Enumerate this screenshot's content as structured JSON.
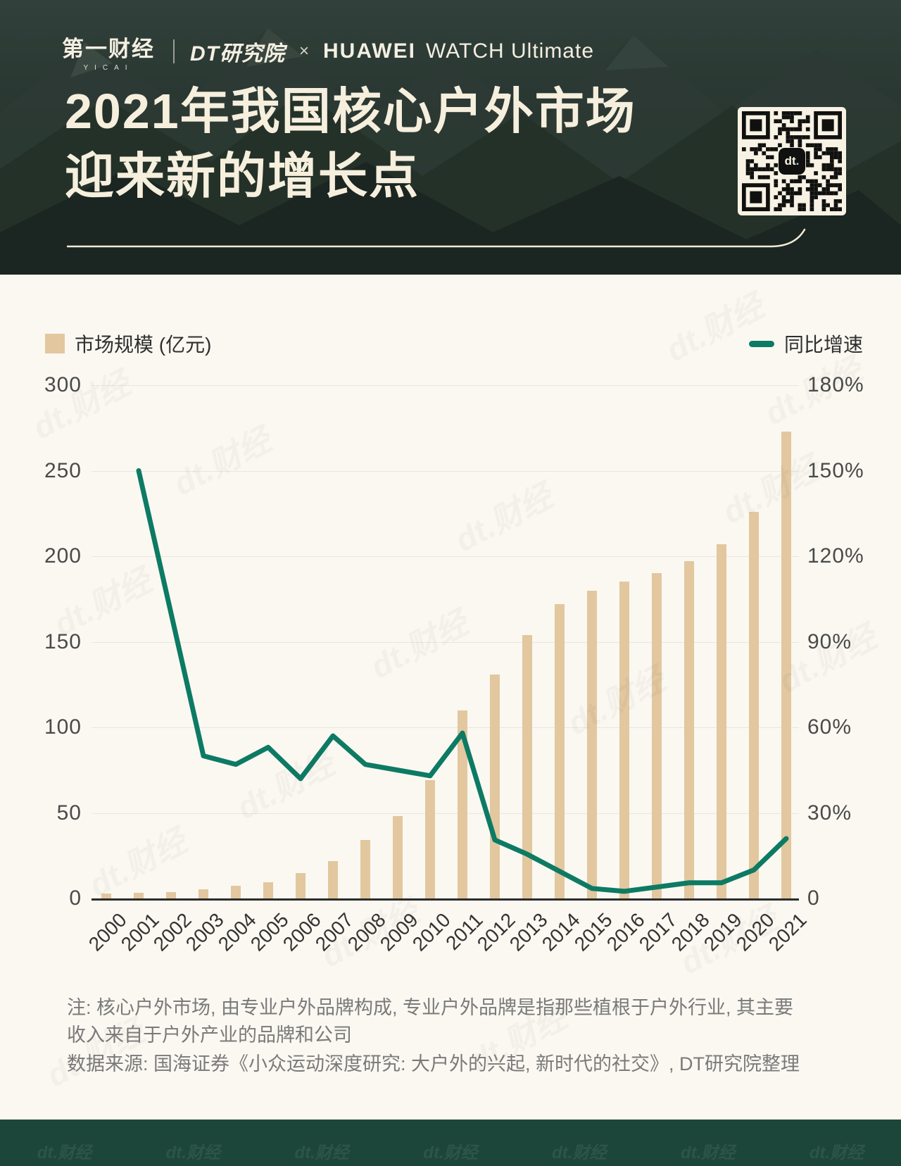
{
  "header": {
    "yicai_logo": "第一财经",
    "yicai_sub": "YICAI",
    "dt_logo": "DT研究院",
    "cross": "×",
    "huawei_bold": "HUAWEI",
    "huawei_rest": "WATCH Ultimate",
    "title_line1": "2021年我国核心户外市场",
    "title_line2": "迎来新的增长点",
    "qr_logo_text": "dt"
  },
  "legend": {
    "bars_label": "市场规模 (亿元)",
    "line_label": "同比增速"
  },
  "colors": {
    "bar": "#e2c79f",
    "line": "#0d7a64",
    "background": "#faf8f1",
    "header_bg": "#232f2b",
    "title_text": "#f6efdd",
    "footer": "#1c4639"
  },
  "chart_data": {
    "type": "bar+line combo",
    "title": "2021年我国核心户外市场迎来新的增长点",
    "categories": [
      "2000",
      "2001",
      "2002",
      "2003",
      "2004",
      "2005",
      "2006",
      "2007",
      "2008",
      "2009",
      "2010",
      "2011",
      "2012",
      "2013",
      "2014",
      "2015",
      "2016",
      "2017",
      "2018",
      "2019",
      "2020",
      "2021"
    ],
    "series": [
      {
        "name": "市场规模 (亿元)",
        "type": "bar",
        "axis": "left",
        "values": [
          3,
          3.4,
          3.9,
          5.3,
          7.4,
          9.6,
          15,
          22,
          34,
          48,
          69,
          110,
          131,
          154,
          172,
          180,
          185,
          190,
          197,
          207,
          226,
          273
        ]
      },
      {
        "name": "同比增速",
        "type": "line",
        "axis": "right",
        "unit": "%",
        "values": [
          null,
          150,
          100,
          50,
          47,
          53,
          42,
          57,
          47,
          45,
          43,
          58,
          20.5,
          15.5,
          9.5,
          3.5,
          2.5,
          4,
          5.5,
          5.5,
          10,
          21
        ]
      }
    ],
    "left_axis": {
      "ticks": [
        "300",
        "250",
        "200",
        "150",
        "100",
        "50",
        "0"
      ],
      "range": [
        0,
        300
      ]
    },
    "right_axis": {
      "ticks": [
        "180%",
        "150%",
        "120%",
        "90%",
        "60%",
        "30%",
        "0"
      ],
      "range": [
        0,
        180
      ]
    },
    "grid": true,
    "legend_position": "top"
  },
  "notes": {
    "note_line1": "注: 核心户外市场, 由专业户外品牌构成, 专业户外品牌是指那些植根于户外行业, 其主要",
    "note_line2": "收入来自于户外产业的品牌和公司",
    "source": "数据来源: 国海证券《小众运动深度研究: 大户外的兴起, 新时代的社交》, DT研究院整理"
  },
  "watermark": "dt.财经"
}
